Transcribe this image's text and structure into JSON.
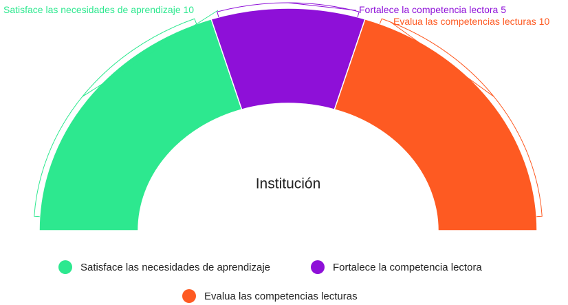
{
  "chart_data": {
    "type": "semi-donut",
    "center_label": "Institución",
    "categories": [
      "Satisface las necesidades de aprendizaje",
      "Fortalece la competencia lectora",
      "Evalua las competencias lecturas"
    ],
    "values": [
      10,
      5,
      10
    ],
    "colors": [
      "#2de88f",
      "#8e10d8",
      "#fe5a22"
    ],
    "legend": "bottom"
  }
}
